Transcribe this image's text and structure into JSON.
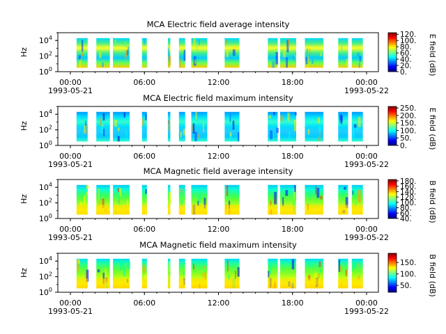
{
  "chart_data": [
    {
      "type": "heatmap",
      "title": "MCA  Electric field average intensity",
      "ylabel": "Hz",
      "ylim": [
        1,
        100000
      ],
      "yscale": "log",
      "yticks": [
        "10",
        "10",
        "10"
      ],
      "yexp": [
        "0",
        "2",
        "4"
      ],
      "xticks": [
        "00:00",
        "06:00",
        "12:00",
        "18:00",
        "00:00"
      ],
      "xdates": [
        "1993-05-21",
        "1993-05-22"
      ],
      "colorbar": {
        "label": "E field (dB)",
        "ticks": [
          "0.",
          "20.",
          "40.",
          "60.",
          "80.",
          "100.",
          "120."
        ],
        "range": [
          0,
          125
        ]
      },
      "data_segments_hours": [
        [
          0.5,
          1.4
        ],
        [
          2.1,
          3.2
        ],
        [
          3.45,
          4.8
        ],
        [
          5.8,
          6.2
        ],
        [
          7.9,
          8.1
        ],
        [
          8.8,
          9.3
        ],
        [
          9.8,
          11.1
        ],
        [
          12.5,
          13.7
        ],
        [
          16.0,
          16.8
        ],
        [
          17.0,
          18.3
        ],
        [
          19.0,
          20.5
        ],
        [
          21.7,
          22.5
        ],
        [
          22.8,
          23.7
        ]
      ]
    },
    {
      "type": "heatmap",
      "title": "MCA  Electric field maximum intensity",
      "ylabel": "Hz",
      "ylim": [
        1,
        100000
      ],
      "yscale": "log",
      "yticks": [
        "10",
        "10",
        "10"
      ],
      "yexp": [
        "0",
        "2",
        "4"
      ],
      "xticks": [
        "00:00",
        "06:00",
        "12:00",
        "18:00",
        "00:00"
      ],
      "xdates": [
        "1993-05-21",
        "1993-05-22"
      ],
      "colorbar": {
        "label": "E field (dB)",
        "ticks": [
          "0.",
          "50.",
          "100.",
          "150.",
          "200.",
          "250."
        ],
        "range": [
          0,
          260
        ]
      },
      "data_segments_hours": [
        [
          0.5,
          1.4
        ],
        [
          2.1,
          3.2
        ],
        [
          3.45,
          4.8
        ],
        [
          5.8,
          6.2
        ],
        [
          7.9,
          8.1
        ],
        [
          8.8,
          9.3
        ],
        [
          9.8,
          11.1
        ],
        [
          12.5,
          13.7
        ],
        [
          16.0,
          16.8
        ],
        [
          17.0,
          18.3
        ],
        [
          19.0,
          20.5
        ],
        [
          21.7,
          22.5
        ],
        [
          22.8,
          23.7
        ]
      ]
    },
    {
      "type": "heatmap",
      "title": "MCA  Magnetic field average intensity",
      "ylabel": "Hz",
      "ylim": [
        1,
        100000
      ],
      "yscale": "log",
      "yticks": [
        "10",
        "10",
        "10"
      ],
      "yexp": [
        "0",
        "2",
        "4"
      ],
      "xticks": [
        "00:00",
        "06:00",
        "12:00",
        "18:00",
        "00:00"
      ],
      "xdates": [
        "1993-05-21",
        "1993-05-22"
      ],
      "colorbar": {
        "label": "B field (dB)",
        "ticks": [
          "40.",
          "60.",
          "80.",
          "100.",
          "120.",
          "140.",
          "160.",
          "180."
        ],
        "range": [
          40,
          185
        ]
      },
      "data_segments_hours": [
        [
          0.5,
          1.4
        ],
        [
          2.1,
          3.2
        ],
        [
          3.45,
          4.8
        ],
        [
          5.8,
          6.2
        ],
        [
          7.9,
          8.1
        ],
        [
          8.8,
          9.3
        ],
        [
          9.8,
          11.1
        ],
        [
          12.5,
          13.7
        ],
        [
          16.0,
          16.8
        ],
        [
          17.0,
          18.3
        ],
        [
          19.0,
          20.5
        ],
        [
          21.7,
          22.5
        ],
        [
          22.8,
          23.7
        ]
      ]
    },
    {
      "type": "heatmap",
      "title": "MCA  Magnetic field maximum intensity",
      "ylabel": "Hz",
      "ylim": [
        1,
        100000
      ],
      "yscale": "log",
      "yticks": [
        "10",
        "10",
        "10"
      ],
      "yexp": [
        "0",
        "2",
        "4"
      ],
      "xticks": [
        "00:00",
        "06:00",
        "12:00",
        "18:00",
        "00:00"
      ],
      "xdates": [
        "1993-05-21",
        "1993-05-22"
      ],
      "colorbar": {
        "label": "B field (dB)",
        "ticks": [
          "50.",
          "100.",
          "150."
        ],
        "range": [
          20,
          190
        ]
      },
      "data_segments_hours": [
        [
          0.5,
          1.4
        ],
        [
          2.1,
          3.2
        ],
        [
          3.45,
          4.8
        ],
        [
          5.8,
          6.2
        ],
        [
          7.9,
          8.1
        ],
        [
          8.8,
          9.3
        ],
        [
          9.8,
          11.1
        ],
        [
          12.5,
          13.7
        ],
        [
          16.0,
          16.8
        ],
        [
          17.0,
          18.3
        ],
        [
          19.0,
          20.5
        ],
        [
          21.7,
          22.5
        ],
        [
          22.8,
          23.7
        ]
      ]
    }
  ]
}
